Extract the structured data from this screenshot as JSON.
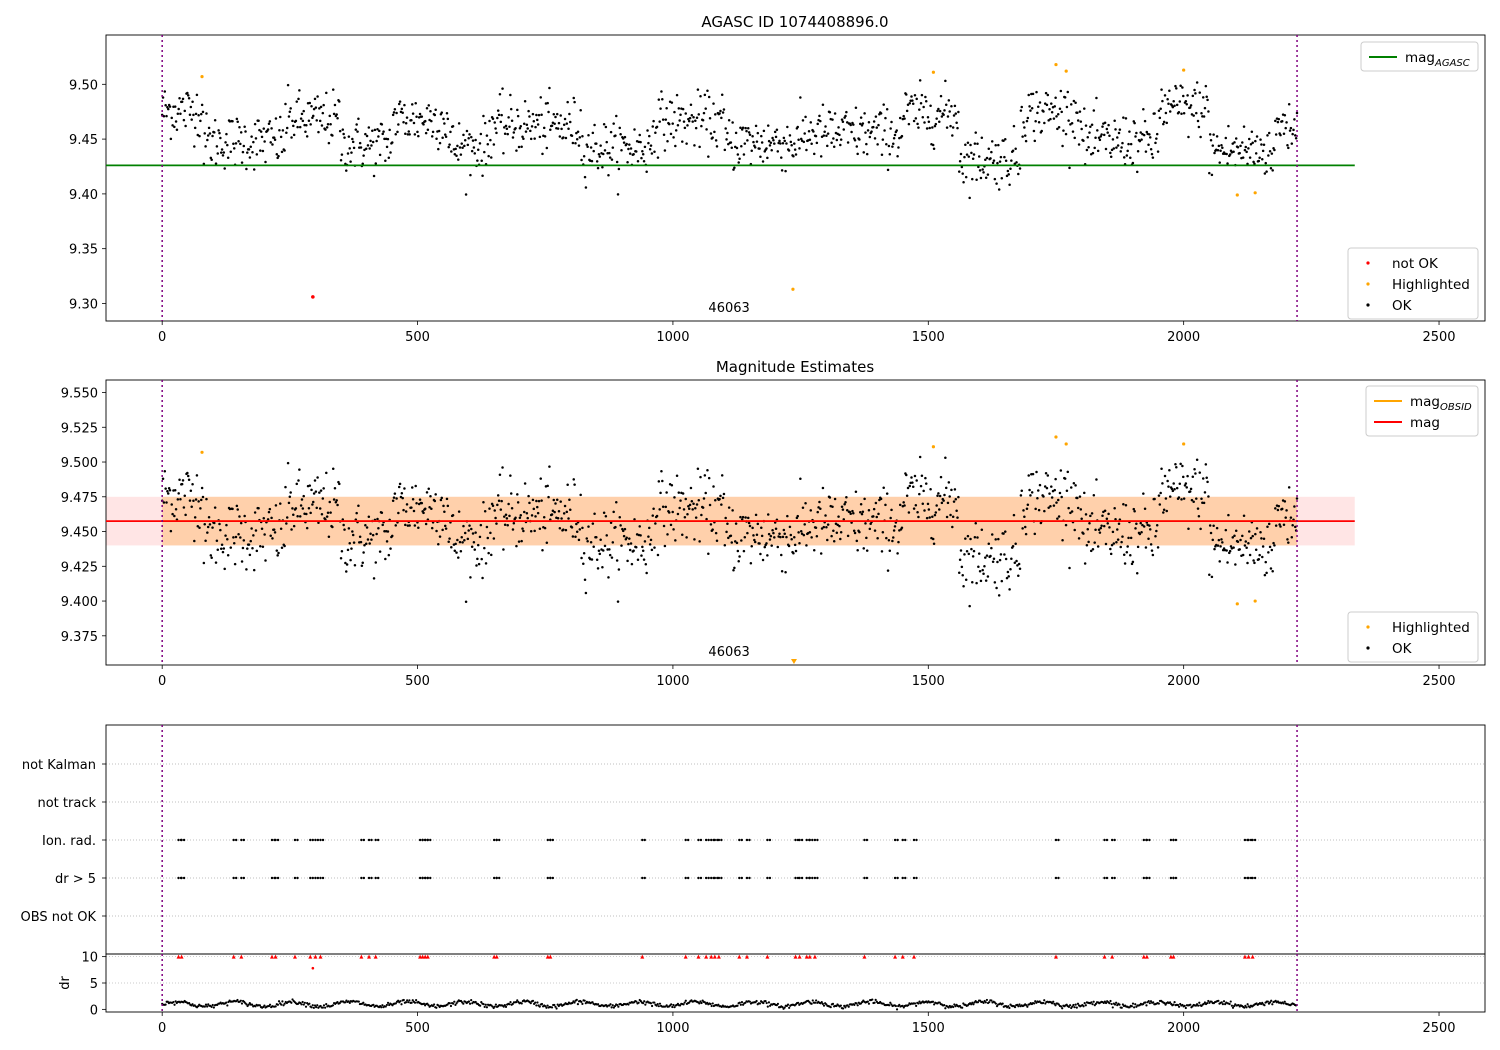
{
  "chart_data": [
    {
      "type": "scatter",
      "title": "AGASC ID 1074408896.0",
      "xlim": [
        -110,
        2590
      ],
      "ylim": [
        9.284,
        9.545
      ],
      "xticks": [
        0,
        500,
        1000,
        1500,
        2000,
        2500
      ],
      "xtick_labels": [
        "0",
        "500",
        "1000",
        "1500",
        "2000",
        "2500"
      ],
      "yticks": [
        9.3,
        9.35,
        9.4,
        9.45,
        9.5
      ],
      "ytick_labels": [
        "9.30",
        "9.35",
        "9.40",
        "9.45",
        "9.50"
      ],
      "obsid_boundaries": [
        0,
        2222
      ],
      "obsid_label": "46063",
      "obsid_label_x": 1110,
      "reference_lines": [
        {
          "name": "mag_AGASC",
          "y": 9.426,
          "x_range": [
            -110,
            2335
          ],
          "color": "#008000"
        }
      ],
      "ok_series": {
        "name": "OK",
        "color": "#000000",
        "x_range": [
          0,
          2222
        ],
        "mean": 9.46,
        "segments": [
          {
            "x": [
              0,
              80
            ],
            "y": 9.476
          },
          {
            "x": [
              80,
              240
            ],
            "y": 9.448
          },
          {
            "x": [
              240,
              350
            ],
            "y": 9.468
          },
          {
            "x": [
              350,
              450
            ],
            "y": 9.445
          },
          {
            "x": [
              450,
              560
            ],
            "y": 9.468
          },
          {
            "x": [
              560,
              640
            ],
            "y": 9.443
          },
          {
            "x": [
              640,
              720
            ],
            "y": 9.462
          },
          {
            "x": [
              720,
              820
            ],
            "y": 9.462
          },
          {
            "x": [
              820,
              960
            ],
            "y": 9.442
          },
          {
            "x": [
              960,
              1100
            ],
            "y": 9.466
          },
          {
            "x": [
              1100,
              1250
            ],
            "y": 9.447
          },
          {
            "x": [
              1250,
              1450
            ],
            "y": 9.455
          },
          {
            "x": [
              1450,
              1560
            ],
            "y": 9.473
          },
          {
            "x": [
              1560,
              1680
            ],
            "y": 9.432
          },
          {
            "x": [
              1680,
              1800
            ],
            "y": 9.474
          },
          {
            "x": [
              1800,
              1950
            ],
            "y": 9.448
          },
          {
            "x": [
              1950,
              2050
            ],
            "y": 9.478
          },
          {
            "x": [
              2050,
              2180
            ],
            "y": 9.44
          },
          {
            "x": [
              2180,
              2222
            ],
            "y": 9.462
          }
        ]
      },
      "highlighted_points": {
        "name": "Highlighted",
        "color": "#ffa500",
        "points": [
          [
            78,
            9.507
          ],
          [
            1510,
            9.511
          ],
          [
            1750,
            9.518
          ],
          [
            1770,
            9.512
          ],
          [
            2000,
            9.513
          ],
          [
            2105,
            9.399
          ],
          [
            2140,
            9.401
          ],
          [
            1235,
            9.313
          ]
        ]
      },
      "not_ok_points": {
        "name": "not OK",
        "color": "#ff0000",
        "points": [
          [
            295,
            9.306
          ]
        ]
      },
      "legend_top": {
        "placement": "top-right",
        "entries": [
          {
            "label": "mag",
            "subscript": "AGASC",
            "color": "#008000"
          }
        ]
      },
      "legend_bottom": {
        "placement": "bottom-right",
        "entries": [
          {
            "label": "not OK",
            "color": "#ff0000"
          },
          {
            "label": "Highlighted",
            "color": "#ffa500"
          },
          {
            "label": "OK",
            "color": "#000000"
          }
        ]
      }
    },
    {
      "type": "scatter",
      "title": "Magnitude Estimates",
      "xlim": [
        -110,
        2590
      ],
      "ylim": [
        9.354,
        9.559
      ],
      "xticks": [
        0,
        500,
        1000,
        1500,
        2000,
        2500
      ],
      "xtick_labels": [
        "0",
        "500",
        "1000",
        "1500",
        "2000",
        "2500"
      ],
      "yticks": [
        9.375,
        9.4,
        9.425,
        9.45,
        9.475,
        9.5,
        9.525,
        9.55
      ],
      "ytick_labels": [
        "9.375",
        "9.400",
        "9.425",
        "9.450",
        "9.475",
        "9.500",
        "9.525",
        "9.550"
      ],
      "obsid_boundaries": [
        0,
        2222
      ],
      "obsid_label": "46063",
      "obsid_label_x": 1110,
      "bands": [
        {
          "name": "mag_OBSID",
          "y_range": [
            9.44,
            9.475
          ],
          "x_range": [
            0,
            2222
          ],
          "color": "#ffa500",
          "opacity": 0.25
        },
        {
          "name": "mag",
          "y_range": [
            9.44,
            9.475
          ],
          "x_range": [
            -110,
            2335
          ],
          "color": "#ff0000",
          "opacity": 0.1
        }
      ],
      "reference_lines": [
        {
          "name": "mag_OBSID",
          "y": 9.4575,
          "x_range": [
            0,
            2222
          ],
          "color": "#ffa500"
        },
        {
          "name": "mag",
          "y": 9.4575,
          "x_range": [
            -110,
            2335
          ],
          "color": "#ff0000"
        }
      ],
      "ok_series": {
        "name": "OK",
        "color": "#000000",
        "same_as_panel": 0
      },
      "highlighted_points": {
        "name": "Highlighted",
        "color": "#ffa500",
        "points": [
          [
            78,
            9.507
          ],
          [
            1510,
            9.511
          ],
          [
            1750,
            9.518
          ],
          [
            1770,
            9.513
          ],
          [
            2000,
            9.513
          ],
          [
            2105,
            9.398
          ],
          [
            2140,
            9.4
          ]
        ],
        "out_of_range_markers": [
          [
            1237,
            "down"
          ]
        ]
      },
      "legend_top": {
        "placement": "top-right",
        "entries": [
          {
            "label": "mag",
            "subscript": "OBSID",
            "color": "#ffa500"
          },
          {
            "label": "mag",
            "color": "#ff0000"
          }
        ]
      },
      "legend_bottom": {
        "placement": "bottom-right",
        "entries": [
          {
            "label": "Highlighted",
            "color": "#ffa500"
          },
          {
            "label": "OK",
            "color": "#000000"
          }
        ]
      }
    },
    {
      "type": "scatter",
      "title": "",
      "xlim": [
        -110,
        2590
      ],
      "categories": [
        "not Kalman",
        "not track",
        "Ion. rad.",
        "dr > 5",
        "OBS not OK"
      ],
      "flag_times": [
        32,
        38,
        140,
        155,
        215,
        222,
        260,
        290,
        300,
        310,
        390,
        405,
        418,
        505,
        510,
        515,
        520,
        650,
        655,
        755,
        760,
        940,
        1025,
        1050,
        1065,
        1075,
        1082,
        1090,
        1130,
        1145,
        1185,
        1240,
        1248,
        1262,
        1268,
        1278,
        1375,
        1435,
        1450,
        1472,
        1750,
        1845,
        1860,
        1922,
        1928,
        1975,
        1980,
        2120,
        2127,
        2135
      ],
      "flagged_categories": [
        "Ion. rad.",
        "dr > 5"
      ],
      "obsid_boundaries": [
        0,
        2222
      ]
    },
    {
      "type": "scatter",
      "title": "",
      "ylabel": "dr",
      "xlim": [
        -110,
        2590
      ],
      "ylim": [
        -0.5,
        10.5
      ],
      "xticks": [
        0,
        500,
        1000,
        1500,
        2000,
        2500
      ],
      "xtick_labels": [
        "0",
        "500",
        "1000",
        "1500",
        "2000",
        "2500"
      ],
      "yticks": [
        0,
        5,
        10
      ],
      "ytick_labels": [
        "0",
        "5",
        "10"
      ],
      "baseline_mean": 1.0,
      "clipped_marker_y": 10,
      "extra_points": [
        [
          295,
          7.8
        ]
      ],
      "obsid_boundaries": [
        0,
        2222
      ]
    }
  ]
}
